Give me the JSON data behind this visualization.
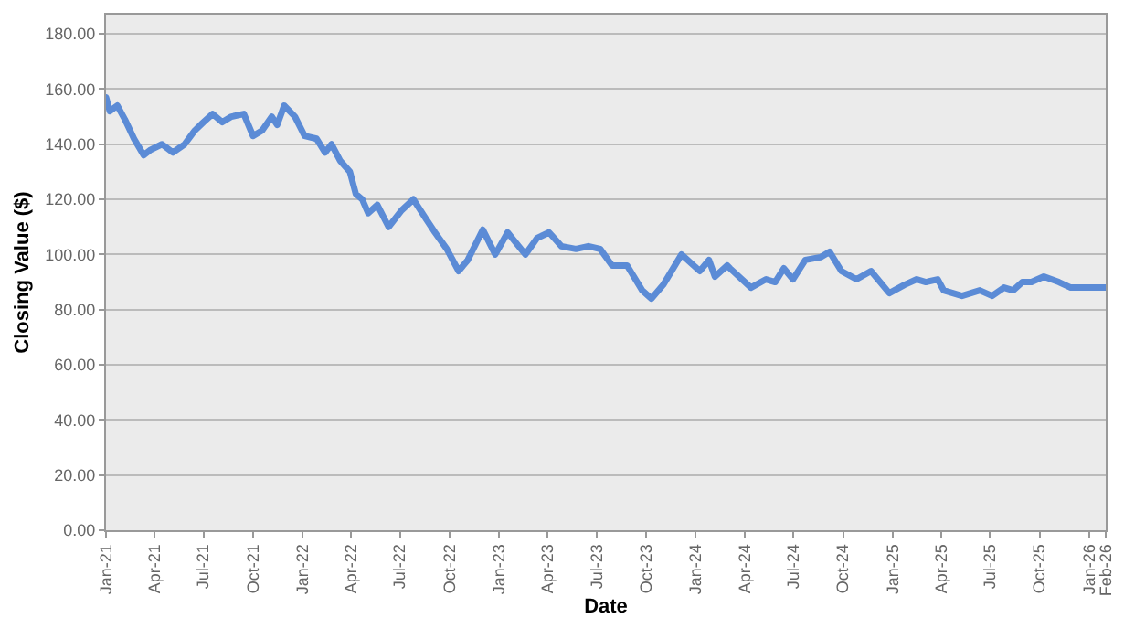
{
  "chart_data": {
    "type": "line",
    "xlabel": "Date",
    "ylabel": "Closing Value ($)",
    "x": [
      "2021-01-01",
      "2021-01-08",
      "2021-01-22",
      "2021-02-05",
      "2021-02-22",
      "2021-03-12",
      "2021-03-25",
      "2021-04-15",
      "2021-05-05",
      "2021-05-27",
      "2021-06-15",
      "2021-07-01",
      "2021-07-18",
      "2021-08-05",
      "2021-08-22",
      "2021-09-14",
      "2021-10-01",
      "2021-10-18",
      "2021-11-05",
      "2021-11-15",
      "2021-11-28",
      "2021-12-18",
      "2022-01-05",
      "2022-01-27",
      "2022-02-12",
      "2022-02-24",
      "2022-03-12",
      "2022-03-30",
      "2022-04-10",
      "2022-04-22",
      "2022-05-03",
      "2022-05-20",
      "2022-06-10",
      "2022-07-04",
      "2022-07-26",
      "2022-08-18",
      "2022-09-04",
      "2022-09-26",
      "2022-10-18",
      "2022-11-04",
      "2022-12-02",
      "2022-12-25",
      "2023-01-17",
      "2023-02-19",
      "2023-03-13",
      "2023-04-04",
      "2023-04-27",
      "2023-05-24",
      "2023-06-16",
      "2023-07-08",
      "2023-07-30",
      "2023-08-27",
      "2023-09-24",
      "2023-10-11",
      "2023-11-02",
      "2023-12-06",
      "2024-01-09",
      "2024-01-26",
      "2024-02-06",
      "2024-02-29",
      "2024-03-05",
      "2024-04-13",
      "2024-05-11",
      "2024-05-28",
      "2024-06-13",
      "2024-06-30",
      "2024-07-23",
      "2024-08-20",
      "2024-09-06",
      "2024-09-28",
      "2024-10-26",
      "2024-11-22",
      "2024-12-26",
      "2025-01-23",
      "2025-02-15",
      "2025-03-04",
      "2025-03-26",
      "2025-04-06",
      "2025-05-10",
      "2025-06-12",
      "2025-07-05",
      "2025-07-27",
      "2025-08-13",
      "2025-08-30",
      "2025-09-16",
      "2025-10-09",
      "2025-11-06",
      "2025-11-28",
      "2026-01-01",
      "2026-01-31"
    ],
    "series": [
      {
        "color": "#5b8bd6",
        "values": [
          157,
          152,
          154,
          149,
          142,
          136,
          138,
          140,
          137,
          140,
          145,
          148,
          151,
          148,
          150,
          151,
          143,
          145,
          150,
          147,
          154,
          150,
          143,
          142,
          137,
          140,
          134,
          130,
          122,
          120,
          115,
          118,
          110,
          116,
          120,
          113,
          108,
          102,
          94,
          98,
          109,
          100,
          108,
          100,
          106,
          108,
          103,
          102,
          103,
          102,
          96,
          96,
          87,
          84,
          89,
          100,
          94,
          98,
          92,
          96,
          95,
          88,
          91,
          90,
          95,
          91,
          98,
          99,
          101,
          94,
          91,
          94,
          86,
          89,
          91,
          90,
          91,
          87,
          85,
          87,
          85,
          88,
          87,
          90,
          90,
          92,
          90,
          88,
          88,
          88
        ]
      }
    ],
    "xlim": [
      "2021-01-01",
      "2026-02-01"
    ],
    "xticks": [
      {
        "value": "2021-01-01",
        "label": "Jan-21"
      },
      {
        "value": "2021-04-01",
        "label": "Apr-21"
      },
      {
        "value": "2021-07-01",
        "label": "Jul-21"
      },
      {
        "value": "2021-10-01",
        "label": "Oct-21"
      },
      {
        "value": "2022-01-01",
        "label": "Jan-22"
      },
      {
        "value": "2022-04-01",
        "label": "Apr-22"
      },
      {
        "value": "2022-07-01",
        "label": "Jul-22"
      },
      {
        "value": "2022-10-01",
        "label": "Oct-22"
      },
      {
        "value": "2023-01-01",
        "label": "Jan-23"
      },
      {
        "value": "2023-04-01",
        "label": "Apr-23"
      },
      {
        "value": "2023-07-01",
        "label": "Jul-23"
      },
      {
        "value": "2023-10-01",
        "label": "Oct-23"
      },
      {
        "value": "2024-01-01",
        "label": "Jan-24"
      },
      {
        "value": "2024-04-01",
        "label": "Apr-24"
      },
      {
        "value": "2024-07-01",
        "label": "Jul-24"
      },
      {
        "value": "2024-10-01",
        "label": "Oct-24"
      },
      {
        "value": "2025-01-01",
        "label": "Jan-25"
      },
      {
        "value": "2025-04-01",
        "label": "Apr-25"
      },
      {
        "value": "2025-07-01",
        "label": "Jul-25"
      },
      {
        "value": "2025-10-01",
        "label": "Oct-25"
      },
      {
        "value": "2026-01-01",
        "label": "Jan-26"
      },
      {
        "value": "2026-02-01",
        "label": "Feb-26"
      }
    ],
    "ylim": [
      0,
      187
    ],
    "yticks": [
      {
        "value": 0,
        "label": "0.00"
      },
      {
        "value": 20,
        "label": "20.00"
      },
      {
        "value": 40,
        "label": "40.00"
      },
      {
        "value": 60,
        "label": "60.00"
      },
      {
        "value": 80,
        "label": "80.00"
      },
      {
        "value": 100,
        "label": "100.00"
      },
      {
        "value": 120,
        "label": "120.00"
      },
      {
        "value": 140,
        "label": "140.00"
      },
      {
        "value": 160,
        "label": "160.00"
      },
      {
        "value": 180,
        "label": "180.00"
      }
    ],
    "grid": "y",
    "marker": "none",
    "line_style": "solid"
  }
}
